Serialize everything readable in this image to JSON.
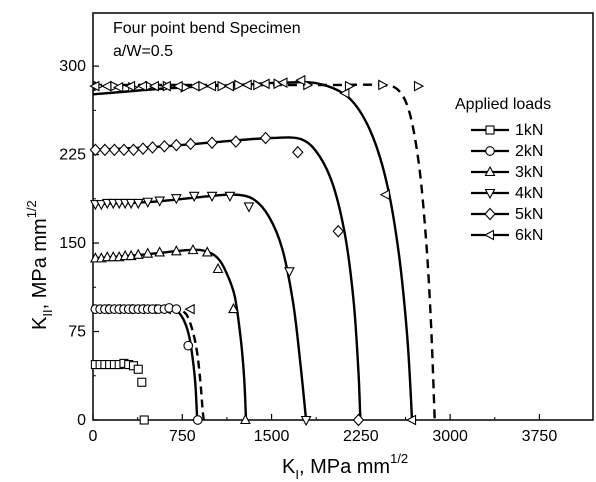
{
  "chart_data": {
    "type": "line",
    "annotations": [
      "Four point bend Specimen",
      "a/W=0.5"
    ],
    "xlabel": {
      "main": "K",
      "sub": "I",
      "rest": ", MPa mm",
      "sup": "1/2"
    },
    "ylabel": {
      "main": "K",
      "sub": "II",
      "rest": ", MPa mm",
      "sup": "1/2"
    },
    "xlim": [
      0,
      4200
    ],
    "ylim": [
      0,
      345
    ],
    "xticks": [
      0,
      750,
      1500,
      2250,
      3000,
      3750
    ],
    "yticks": [
      0,
      75,
      150,
      225,
      300
    ],
    "grid": false,
    "legend": {
      "title": "Applied loads",
      "placement": "right"
    },
    "series": [
      {
        "name": "1kN",
        "marker": "square",
        "points": [
          [
            20,
            47
          ],
          [
            60,
            47
          ],
          [
            100,
            47
          ],
          [
            140,
            47
          ],
          [
            180,
            47
          ],
          [
            220,
            47
          ],
          [
            260,
            48
          ],
          [
            300,
            47
          ],
          [
            340,
            46
          ],
          [
            380,
            43
          ],
          [
            410,
            32
          ],
          [
            430,
            0
          ]
        ],
        "curve": [],
        "dashed": []
      },
      {
        "name": "2kN",
        "marker": "circle",
        "points": [
          [
            20,
            94
          ],
          [
            60,
            94
          ],
          [
            100,
            94
          ],
          [
            140,
            94
          ],
          [
            180,
            94
          ],
          [
            220,
            94
          ],
          [
            260,
            94
          ],
          [
            300,
            94
          ],
          [
            340,
            94
          ],
          [
            380,
            94
          ],
          [
            420,
            94
          ],
          [
            460,
            94
          ],
          [
            500,
            94
          ],
          [
            550,
            94
          ],
          [
            600,
            94
          ],
          [
            640,
            95
          ],
          [
            700,
            94
          ],
          [
            800,
            63
          ],
          [
            880,
            0
          ]
        ],
        "curve": [
          [
            0,
            94
          ],
          [
            300,
            94
          ],
          [
            550,
            94
          ],
          [
            650,
            94
          ],
          [
            720,
            91
          ],
          [
            770,
            83
          ],
          [
            810,
            70
          ],
          [
            840,
            50
          ],
          [
            860,
            30
          ],
          [
            875,
            0
          ]
        ],
        "dashed": []
      },
      {
        "name": "3kN",
        "marker": "triangle-up",
        "points": [
          [
            20,
            137
          ],
          [
            70,
            137
          ],
          [
            120,
            138
          ],
          [
            170,
            138
          ],
          [
            220,
            138
          ],
          [
            270,
            139
          ],
          [
            320,
            139
          ],
          [
            380,
            140
          ],
          [
            460,
            141
          ],
          [
            560,
            142
          ],
          [
            700,
            143
          ],
          [
            840,
            144
          ],
          [
            960,
            142
          ],
          [
            1050,
            128
          ],
          [
            1180,
            94
          ],
          [
            1280,
            0
          ]
        ],
        "curve": [
          [
            0,
            137
          ],
          [
            400,
            140
          ],
          [
            800,
            144
          ],
          [
            950,
            143
          ],
          [
            1050,
            137
          ],
          [
            1120,
            125
          ],
          [
            1190,
            105
          ],
          [
            1240,
            70
          ],
          [
            1270,
            35
          ],
          [
            1285,
            0
          ]
        ],
        "dashed": []
      },
      {
        "name": "4kN",
        "marker": "triangle-down",
        "points": [
          [
            20,
            183
          ],
          [
            70,
            183
          ],
          [
            120,
            184
          ],
          [
            170,
            184
          ],
          [
            220,
            184
          ],
          [
            270,
            184
          ],
          [
            320,
            184
          ],
          [
            380,
            184
          ],
          [
            460,
            185
          ],
          [
            560,
            186
          ],
          [
            700,
            188
          ],
          [
            850,
            190
          ],
          [
            1000,
            190
          ],
          [
            1150,
            190
          ],
          [
            1310,
            181
          ],
          [
            1650,
            126
          ],
          [
            1790,
            0
          ]
        ],
        "curve": [
          [
            0,
            183
          ],
          [
            500,
            185
          ],
          [
            1000,
            190
          ],
          [
            1200,
            191
          ],
          [
            1350,
            187
          ],
          [
            1480,
            172
          ],
          [
            1590,
            145
          ],
          [
            1680,
            100
          ],
          [
            1740,
            50
          ],
          [
            1790,
            0
          ]
        ],
        "dashed": []
      },
      {
        "name": "5kN",
        "marker": "diamond",
        "points": [
          [
            20,
            229
          ],
          [
            100,
            229
          ],
          [
            180,
            229
          ],
          [
            260,
            229
          ],
          [
            340,
            229
          ],
          [
            420,
            230
          ],
          [
            500,
            231
          ],
          [
            600,
            232
          ],
          [
            700,
            233
          ],
          [
            820,
            234
          ],
          [
            1000,
            235
          ],
          [
            1200,
            236
          ],
          [
            1450,
            239
          ],
          [
            1720,
            227
          ],
          [
            2060,
            160
          ],
          [
            2230,
            0
          ]
        ],
        "curve": [
          [
            0,
            229
          ],
          [
            600,
            232
          ],
          [
            1200,
            237
          ],
          [
            1500,
            239
          ],
          [
            1750,
            238
          ],
          [
            1900,
            224
          ],
          [
            2020,
            198
          ],
          [
            2120,
            155
          ],
          [
            2190,
            100
          ],
          [
            2230,
            40
          ],
          [
            2245,
            0
          ]
        ],
        "dashed": []
      },
      {
        "name": "6kN",
        "marker": "triangle-left",
        "points": [
          [
            20,
            283
          ],
          [
            120,
            283
          ],
          [
            220,
            282
          ],
          [
            320,
            283
          ],
          [
            420,
            283
          ],
          [
            520,
            283
          ],
          [
            620,
            283
          ],
          [
            720,
            283
          ],
          [
            860,
            283
          ],
          [
            1000,
            283
          ],
          [
            1150,
            283
          ],
          [
            1300,
            284
          ],
          [
            1450,
            285
          ],
          [
            1600,
            286
          ],
          [
            1750,
            288
          ],
          [
            2120,
            277
          ],
          [
            2460,
            191
          ],
          [
            2680,
            0
          ]
        ],
        "curve": [
          [
            0,
            276
          ],
          [
            600,
            281
          ],
          [
            1200,
            284
          ],
          [
            1600,
            286
          ],
          [
            1900,
            285
          ],
          [
            2150,
            273
          ],
          [
            2330,
            245
          ],
          [
            2470,
            200
          ],
          [
            2570,
            140
          ],
          [
            2640,
            70
          ],
          [
            2680,
            0
          ]
        ],
        "dashed": [
          [
            0,
            284
          ],
          [
            600,
            284
          ],
          [
            1200,
            284
          ],
          [
            1600,
            284
          ],
          [
            2000,
            284
          ],
          [
            2400,
            284
          ],
          [
            2560,
            280
          ],
          [
            2660,
            260
          ],
          [
            2740,
            215
          ],
          [
            2800,
            150
          ],
          [
            2840,
            80
          ],
          [
            2870,
            0
          ]
        ]
      }
    ],
    "extra_markers": [
      {
        "marker": "triangle-right",
        "points": [
          [
            40,
            283
          ],
          [
            180,
            283
          ],
          [
            330,
            282
          ],
          [
            470,
            283
          ],
          [
            620,
            283
          ],
          [
            770,
            282
          ],
          [
            920,
            283
          ],
          [
            1080,
            283
          ],
          [
            1220,
            284
          ],
          [
            1380,
            284
          ],
          [
            1550,
            285
          ],
          [
            1800,
            284
          ],
          [
            2150,
            283
          ],
          [
            2430,
            284
          ],
          [
            2730,
            283
          ]
        ]
      },
      {
        "marker": "triangle-left",
        "points": [
          [
            100,
            94
          ],
          [
            200,
            94
          ],
          [
            300,
            94
          ],
          [
            400,
            94
          ],
          [
            500,
            94
          ],
          [
            620,
            94
          ],
          [
            820,
            94
          ]
        ]
      }
    ],
    "dashed_2kN": [
      [
        0,
        95
      ],
      [
        300,
        95
      ],
      [
        600,
        95
      ],
      [
        700,
        94
      ],
      [
        780,
        90
      ],
      [
        830,
        78
      ],
      [
        870,
        60
      ],
      [
        900,
        35
      ],
      [
        920,
        10
      ],
      [
        930,
        0
      ]
    ]
  }
}
